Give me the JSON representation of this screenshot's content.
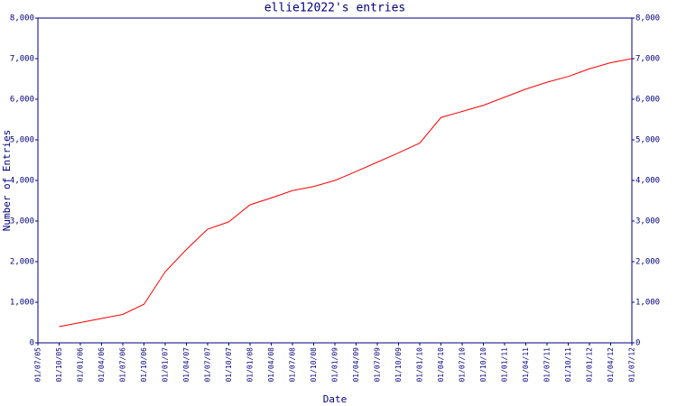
{
  "chart_data": {
    "type": "line",
    "title": "ellie12022's entries",
    "x_label": "Date",
    "y_label": "Number of Entries",
    "categories": [
      "01/07/05",
      "01/10/05",
      "01/01/06",
      "01/04/06",
      "01/07/06",
      "01/10/06",
      "01/01/07",
      "01/04/07",
      "01/07/07",
      "01/10/07",
      "01/01/08",
      "01/04/08",
      "01/07/08",
      "01/10/08",
      "01/01/09",
      "01/04/09",
      "01/07/09",
      "01/10/09",
      "01/01/10",
      "01/04/10",
      "01/07/10",
      "01/10/10",
      "01/01/11",
      "01/04/11",
      "01/07/11",
      "01/10/11",
      "01/01/12",
      "01/04/12",
      "01/07/12"
    ],
    "series": [
      {
        "name": "entries",
        "color": "#ff0000",
        "values": [
          null,
          400,
          500,
          600,
          700,
          950,
          1750,
          2300,
          2800,
          2980,
          3400,
          3570,
          3750,
          3850,
          4000,
          4220,
          4450,
          4680,
          4920,
          5550,
          5700,
          5850,
          6050,
          6250,
          6420,
          6560,
          6750,
          6900,
          7000
        ]
      }
    ],
    "ylim": [
      0,
      8000
    ],
    "yticks": [
      0,
      {
        "value": 1000,
        "label": "1,000"
      },
      {
        "value": 2000,
        "label": "2,000"
      },
      {
        "value": 3000,
        "label": "3,000"
      },
      {
        "value": 4000,
        "label": "4,000"
      },
      {
        "value": 5000,
        "label": "5,000"
      },
      {
        "value": 6000,
        "label": "6,000"
      },
      {
        "value": 7000,
        "label": "7,000"
      },
      {
        "value": 8000,
        "label": "8,000"
      }
    ],
    "grid": false
  }
}
